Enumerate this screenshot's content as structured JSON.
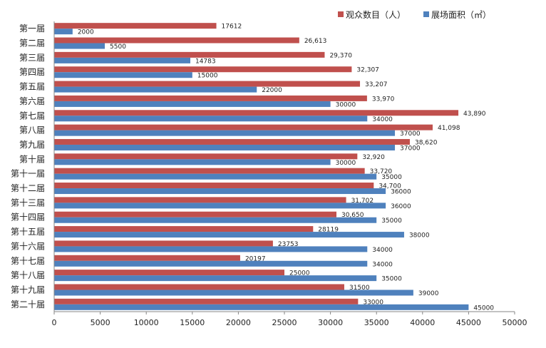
{
  "chart_data": {
    "type": "bar",
    "orientation": "horizontal",
    "categories": [
      "第一届",
      "第二届",
      "第三届",
      "第四届",
      "第五届",
      "第六届",
      "第七届",
      "第八届",
      "第九届",
      "第十届",
      "第十一届",
      "第十二届",
      "第十三届",
      "第十四届",
      "第十五届",
      "第十六届",
      "第十七届",
      "第十八届",
      "第十九届",
      "第二十届"
    ],
    "series": [
      {
        "name": "观众数目（人）",
        "color": "#C0504D",
        "values": [
          17612,
          26613,
          29370,
          32307,
          33207,
          33970,
          43890,
          41098,
          38620,
          32920,
          33720,
          34700,
          31702,
          30650,
          28119,
          23753,
          20197,
          25000,
          31500,
          33000
        ],
        "labels": [
          "17612",
          "26,613",
          "29,370",
          "32,307",
          "33,207",
          "33,970",
          "43,890",
          "41,098",
          "38,620",
          "32,920",
          "33,720",
          "34,700",
          "31,702",
          "30,650",
          "28119",
          "23753",
          "20197",
          "25000",
          "31500",
          "33000"
        ]
      },
      {
        "name": "展场面积（㎡）",
        "color": "#4F81BD",
        "values": [
          2000,
          5500,
          14783,
          15000,
          22000,
          30000,
          34000,
          37000,
          37000,
          30000,
          35000,
          36000,
          36000,
          35000,
          38000,
          34000,
          34000,
          35000,
          39000,
          45000
        ],
        "labels": [
          "2000",
          "5500",
          "14783",
          "15000",
          "22000",
          "30000",
          "34000",
          "37000",
          "37000",
          "30000",
          "35000",
          "36000",
          "36000",
          "35000",
          "38000",
          "34000",
          "34000",
          "35000",
          "39000",
          "45000"
        ]
      }
    ],
    "xlim": [
      0,
      50000
    ],
    "xticks": [
      0,
      5000,
      10000,
      15000,
      20000,
      25000,
      30000,
      35000,
      40000,
      45000,
      50000
    ],
    "legend_position": "top-right",
    "grid": false,
    "title": "",
    "xlabel": "",
    "ylabel": ""
  }
}
